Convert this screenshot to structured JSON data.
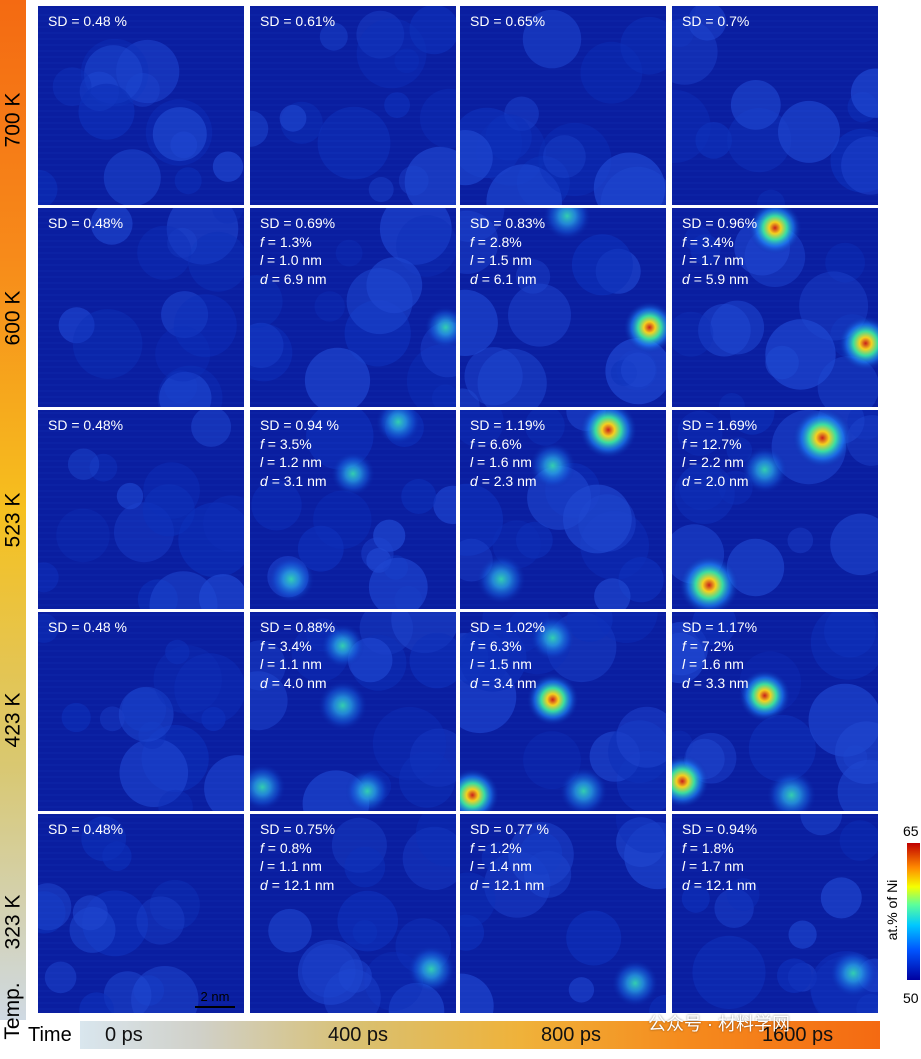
{
  "temperature": {
    "title": "Temp.",
    "rows": [
      "700 K",
      "600 K",
      "523 K",
      "423 K",
      "323 K"
    ],
    "gradient": [
      "#f46a12",
      "#f78a1a",
      "#f6c01f",
      "#d9c871",
      "#cfd9e3"
    ]
  },
  "time": {
    "title": "Time",
    "columns": [
      "0 ps",
      "400 ps",
      "800 ps",
      "1600 ps"
    ]
  },
  "colorbar": {
    "label": "at.% of Ni",
    "max": "65",
    "min": "50"
  },
  "scale_bar": "2 nm",
  "watermark": "公众号 · 材料学网",
  "panels": [
    [
      {
        "sd": "SD = 0.48 %",
        "f": "",
        "l": "",
        "d": "",
        "clusters": []
      },
      {
        "sd": "SD = 0.61%",
        "f": "",
        "l": "",
        "d": "",
        "clusters": []
      },
      {
        "sd": "SD = 0.65%",
        "f": "",
        "l": "",
        "d": "",
        "clusters": []
      },
      {
        "sd": "SD = 0.7%",
        "f": "",
        "l": "",
        "d": "",
        "clusters": []
      }
    ],
    [
      {
        "sd": "SD = 0.48%",
        "f": "",
        "l": "",
        "d": "",
        "clusters": []
      },
      {
        "sd": "SD = 0.69%",
        "f": "= 1.3%",
        "l": "= 1.0 nm",
        "d": "= 6.9 nm",
        "clusters": [
          [
            0.95,
            0.6,
            0.35
          ]
        ]
      },
      {
        "sd": "SD = 0.83%",
        "f": "= 2.8%",
        "l": "= 1.5 nm",
        "d": "= 6.1 nm",
        "clusters": [
          [
            0.52,
            0.04,
            0.55
          ],
          [
            0.92,
            0.6,
            0.7
          ]
        ]
      },
      {
        "sd": "SD = 0.96%",
        "f": "= 3.4%",
        "l": "= 1.7 nm",
        "d": "= 5.9 nm",
        "clusters": [
          [
            0.5,
            0.1,
            0.75
          ],
          [
            0.94,
            0.68,
            0.8
          ]
        ]
      }
    ],
    [
      {
        "sd": "SD = 0.48%",
        "f": "",
        "l": "",
        "d": "",
        "clusters": []
      },
      {
        "sd": "SD = 0.94 %",
        "f": "= 3.5%",
        "l": "= 1.2 nm",
        "d": "= 3.1 nm",
        "clusters": [
          [
            0.72,
            0.06,
            0.45
          ],
          [
            0.5,
            0.32,
            0.4
          ],
          [
            0.2,
            0.85,
            0.5
          ]
        ]
      },
      {
        "sd": "SD = 1.19%",
        "f": "= 6.6%",
        "l": "= 1.6 nm",
        "d": "= 2.3 nm",
        "clusters": [
          [
            0.72,
            0.1,
            0.9
          ],
          [
            0.45,
            0.28,
            0.5
          ],
          [
            0.2,
            0.85,
            0.6
          ]
        ]
      },
      {
        "sd": "SD = 1.69%",
        "f": "= 12.7%",
        "l": "= 2.2 nm",
        "d": "= 2.0 nm",
        "clusters": [
          [
            0.73,
            0.14,
            1.0
          ],
          [
            0.45,
            0.3,
            0.5
          ],
          [
            0.18,
            0.88,
            1.0
          ]
        ]
      }
    ],
    [
      {
        "sd": "SD = 0.48 %",
        "f": "",
        "l": "",
        "d": "",
        "clusters": []
      },
      {
        "sd": "SD = 0.88%",
        "f": "= 3.4%",
        "l": "= 1.1 nm",
        "d": "= 4.0 nm",
        "clusters": [
          [
            0.45,
            0.17,
            0.4
          ],
          [
            0.45,
            0.47,
            0.6
          ],
          [
            0.06,
            0.88,
            0.5
          ],
          [
            0.57,
            0.9,
            0.45
          ]
        ]
      },
      {
        "sd": "SD = 1.02%",
        "f": "= 6.3%",
        "l": "= 1.5 nm",
        "d": "= 3.4 nm",
        "clusters": [
          [
            0.45,
            0.13,
            0.45
          ],
          [
            0.45,
            0.44,
            0.7
          ],
          [
            0.06,
            0.92,
            0.75
          ],
          [
            0.6,
            0.9,
            0.55
          ]
        ]
      },
      {
        "sd": "SD = 1.17%",
        "f": "= 7.2%",
        "l": "= 1.6 nm",
        "d": "= 3.3 nm",
        "clusters": [
          [
            0.45,
            0.42,
            0.7
          ],
          [
            0.05,
            0.85,
            0.75
          ],
          [
            0.58,
            0.92,
            0.6
          ]
        ]
      }
    ],
    [
      {
        "sd": "SD = 0.48%",
        "f": "",
        "l": "",
        "d": "",
        "clusters": []
      },
      {
        "sd": "SD = 0.75%",
        "f": "= 0.8%",
        "l": "= 1.1 nm",
        "d": "= 12.1 nm",
        "clusters": [
          [
            0.88,
            0.78,
            0.55
          ]
        ]
      },
      {
        "sd": "SD = 0.77 %",
        "f": "= 1.2%",
        "l": "= 1.4 nm",
        "d": "= 12.1 nm",
        "clusters": [
          [
            0.85,
            0.85,
            0.5
          ]
        ]
      },
      {
        "sd": "SD = 0.94%",
        "f": "= 1.8%",
        "l": "= 1.7 nm",
        "d": "= 12.1 nm",
        "clusters": [
          [
            0.88,
            0.8,
            0.55
          ]
        ]
      }
    ]
  ]
}
